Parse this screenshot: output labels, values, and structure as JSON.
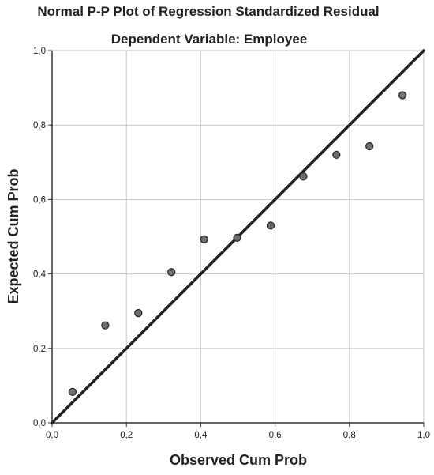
{
  "chart_data": {
    "type": "scatter",
    "title": "Normal P-P Plot of Regression Standardized Residual",
    "subtitle": "Dependent Variable: Employee",
    "xlabel": "Observed Cum Prob",
    "ylabel": "Expected Cum Prob",
    "xlim": [
      0.0,
      1.0
    ],
    "ylim": [
      0.0,
      1.0
    ],
    "x_ticks": [
      "0,0",
      "0,2",
      "0,4",
      "0,6",
      "0,8",
      "1,0"
    ],
    "y_ticks": [
      "0,0",
      "0,2",
      "0,4",
      "0,6",
      "0,8",
      "1,0"
    ],
    "grid": true,
    "reference_line": {
      "from": [
        0.0,
        0.0
      ],
      "to": [
        1.0,
        1.0
      ]
    },
    "points": [
      {
        "x": 0.055,
        "y": 0.083
      },
      {
        "x": 0.143,
        "y": 0.262
      },
      {
        "x": 0.232,
        "y": 0.295
      },
      {
        "x": 0.321,
        "y": 0.405
      },
      {
        "x": 0.409,
        "y": 0.493
      },
      {
        "x": 0.498,
        "y": 0.497
      },
      {
        "x": 0.588,
        "y": 0.53
      },
      {
        "x": 0.676,
        "y": 0.662
      },
      {
        "x": 0.765,
        "y": 0.72
      },
      {
        "x": 0.854,
        "y": 0.743
      },
      {
        "x": 0.943,
        "y": 0.88
      }
    ],
    "colors": {
      "point_fill": "#6e6e6e",
      "point_stroke": "#2b2b2b",
      "line": "#1f1f1f",
      "grid": "#c8c8c8",
      "frame": "#c0c0c0"
    }
  }
}
